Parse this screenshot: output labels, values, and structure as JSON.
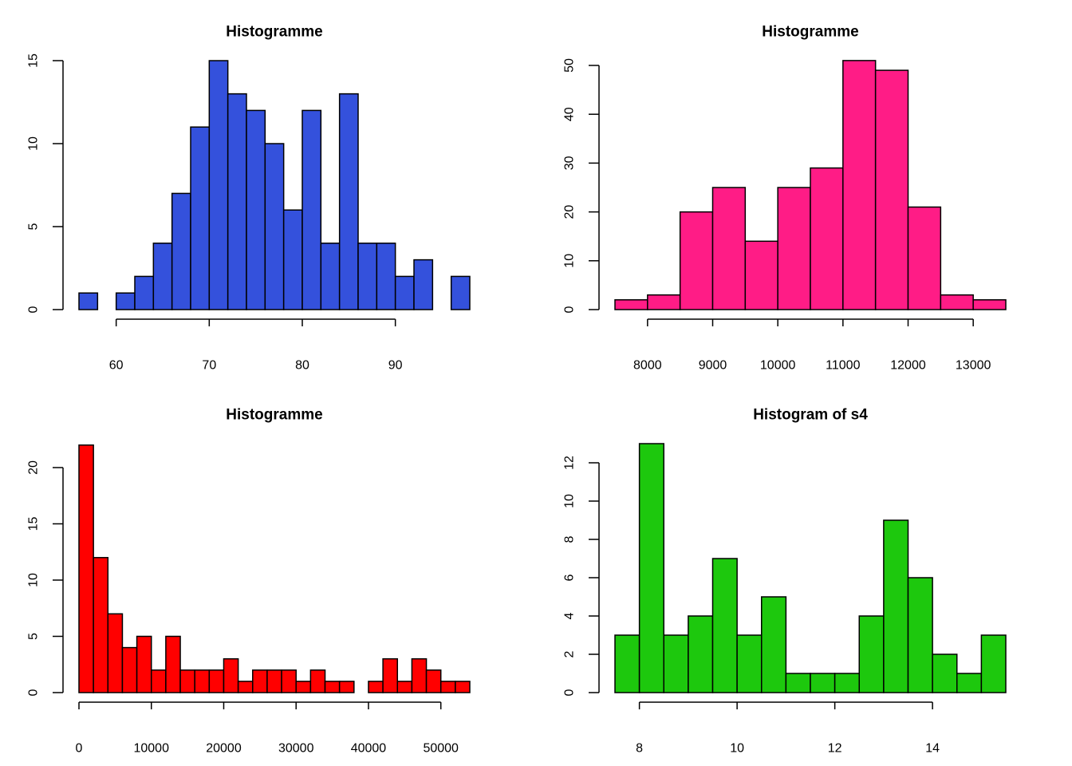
{
  "chart_data": [
    {
      "type": "bar",
      "title": "Histogramme",
      "xlabel": "",
      "ylabel": "",
      "color": "#3451dc",
      "bin_width": 2,
      "bins_start": [
        56,
        58,
        60,
        62,
        64,
        66,
        68,
        70,
        72,
        74,
        76,
        78,
        80,
        82,
        84,
        86,
        88,
        90,
        92,
        94,
        96
      ],
      "values": [
        1,
        0,
        1,
        2,
        4,
        7,
        11,
        15,
        13,
        12,
        10,
        6,
        12,
        4,
        13,
        4,
        4,
        2,
        3,
        0,
        2
      ],
      "xlim": [
        56,
        98
      ],
      "ylim": [
        0,
        15
      ],
      "x_ticks": [
        60,
        70,
        80,
        90
      ],
      "x_tick_labels": [
        "60",
        "70",
        "80",
        "90"
      ],
      "y_ticks": [
        0,
        5,
        10,
        15
      ],
      "y_tick_labels": [
        "0",
        "5",
        "10",
        "15"
      ]
    },
    {
      "type": "bar",
      "title": "Histogramme",
      "xlabel": "",
      "ylabel": "",
      "color": "#ff1c86",
      "bin_width": 500,
      "bins_start": [
        7500,
        8000,
        8500,
        9000,
        9500,
        10000,
        10500,
        11000,
        11500,
        12000,
        12500,
        13000
      ],
      "values": [
        2,
        3,
        20,
        25,
        14,
        25,
        29,
        51,
        49,
        21,
        3,
        2
      ],
      "xlim": [
        7500,
        13500
      ],
      "ylim": [
        0,
        50
      ],
      "x_ticks": [
        8000,
        9000,
        10000,
        11000,
        12000,
        13000
      ],
      "x_tick_labels": [
        "8000",
        "9000",
        "10000",
        "11000",
        "12000",
        "13000"
      ],
      "y_ticks": [
        0,
        10,
        20,
        30,
        40,
        50
      ],
      "y_tick_labels": [
        "0",
        "10",
        "20",
        "30",
        "40",
        "50"
      ]
    },
    {
      "type": "bar",
      "title": "Histogramme",
      "xlabel": "",
      "ylabel": "",
      "color": "#ff0000",
      "bin_width": 2000,
      "bins_start": [
        0,
        2000,
        4000,
        6000,
        8000,
        10000,
        12000,
        14000,
        16000,
        18000,
        20000,
        22000,
        24000,
        26000,
        28000,
        30000,
        32000,
        34000,
        36000,
        38000,
        40000,
        42000,
        44000,
        46000,
        48000,
        50000,
        52000
      ],
      "values": [
        22,
        12,
        7,
        4,
        5,
        2,
        5,
        2,
        2,
        2,
        3,
        1,
        2,
        2,
        2,
        1,
        2,
        1,
        1,
        0,
        1,
        3,
        1,
        3,
        2,
        1,
        1
      ],
      "xlim": [
        0,
        54000
      ],
      "ylim": [
        0,
        20
      ],
      "x_ticks": [
        0,
        10000,
        20000,
        30000,
        40000,
        50000
      ],
      "x_tick_labels": [
        "0",
        "10000",
        "20000",
        "30000",
        "40000",
        "50000"
      ],
      "y_ticks": [
        0,
        5,
        10,
        15,
        20
      ],
      "y_tick_labels": [
        "0",
        "5",
        "10",
        "15",
        "20"
      ]
    },
    {
      "type": "bar",
      "title": "Histogram of s4",
      "xlabel": "",
      "ylabel": "",
      "color": "#1dc80d",
      "bin_width": 0.5,
      "bins_start": [
        7.5,
        8,
        8.5,
        9,
        9.5,
        10,
        10.5,
        11,
        11.5,
        12,
        12.5,
        13,
        13.5,
        14,
        14.5,
        15
      ],
      "values": [
        3,
        13,
        3,
        4,
        7,
        3,
        5,
        1,
        1,
        1,
        4,
        9,
        6,
        2,
        1,
        3
      ],
      "xlim": [
        7.5,
        15.5
      ],
      "ylim": [
        0,
        12
      ],
      "x_ticks": [
        8,
        10,
        12,
        14
      ],
      "x_tick_labels": [
        "8",
        "10",
        "12",
        "14"
      ],
      "y_ticks": [
        0,
        2,
        4,
        6,
        8,
        10,
        12
      ],
      "y_tick_labels": [
        "0",
        "2",
        "4",
        "6",
        "8",
        "10",
        "12"
      ]
    }
  ]
}
